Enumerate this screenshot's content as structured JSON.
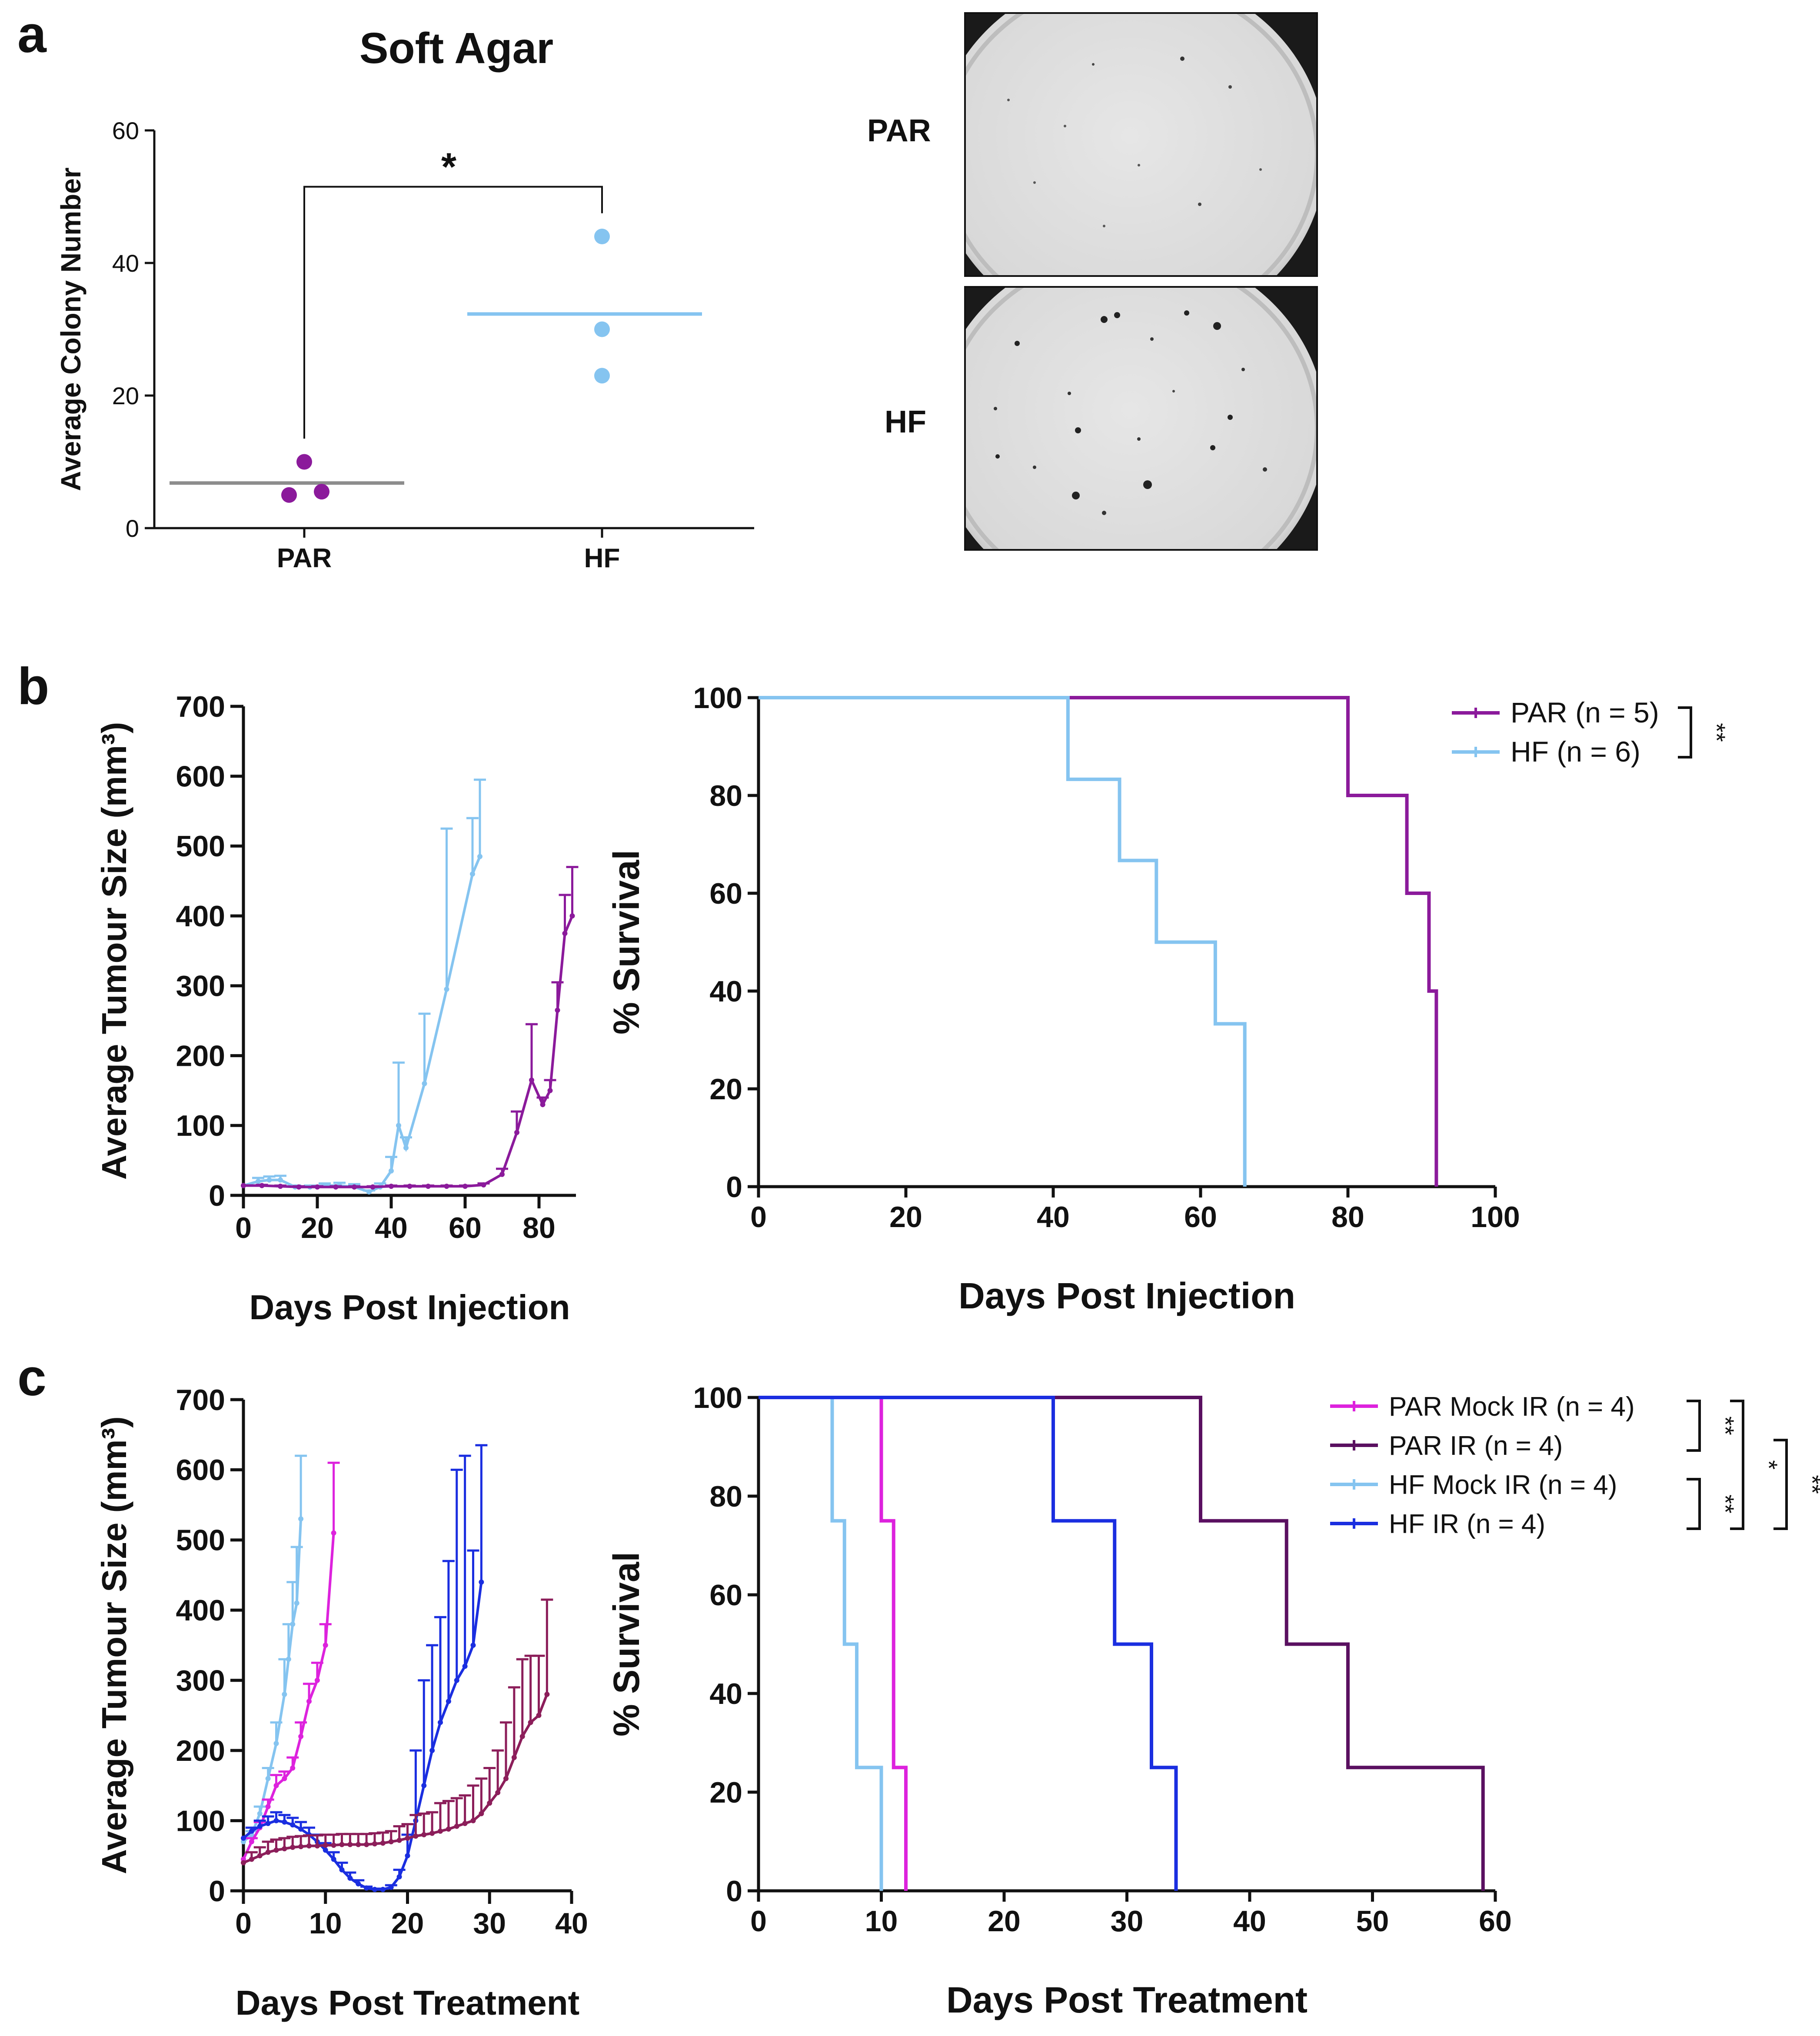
{
  "colors": {
    "par_mid": "#8B1A9B",
    "hf_light": "#85C4F0",
    "par_gray": "#8C8C8C",
    "par_mock_ir": "#DD22DD",
    "par_ir": "#5A1060",
    "hf_ir": "#1A2EE0",
    "c_par_ir_tumour": "#8C1E5A",
    "axis": "#111111"
  },
  "panels": {
    "a": {
      "letter": "a"
    },
    "b": {
      "letter": "b"
    },
    "c": {
      "letter": "c"
    }
  },
  "images": {
    "par_label": "PAR",
    "hf_label": "HF"
  },
  "chart_data": [
    {
      "id": "a-soft-agar",
      "type": "scatter",
      "title": "Soft Agar",
      "xlabel": "",
      "ylabel": "Average Colony Number",
      "categories": [
        "PAR",
        "HF"
      ],
      "ylim": [
        0,
        60
      ],
      "yticks": [
        0,
        20,
        40,
        60
      ],
      "series": [
        {
          "name": "PAR",
          "points": [
            10,
            5,
            5.5
          ],
          "mean": 6.8,
          "color": "#8B1A9B",
          "mean_color": "#8C8C8C"
        },
        {
          "name": "HF",
          "points": [
            44,
            30,
            23
          ],
          "mean": 32.3,
          "color": "#85C4F0",
          "mean_color": "#85C4F0"
        }
      ],
      "significance": "*"
    },
    {
      "id": "b-tumour",
      "type": "line",
      "xlabel": "Days Post Injection",
      "ylabel": "Average Tumour Size (mm³)",
      "xlim": [
        0,
        90
      ],
      "xticks": [
        0,
        20,
        40,
        60,
        80
      ],
      "ylim": [
        0,
        700
      ],
      "yticks": [
        0,
        100,
        200,
        300,
        400,
        500,
        600,
        700
      ],
      "series": [
        {
          "name": "HF",
          "color": "#85C4F0",
          "x": [
            0,
            4,
            7,
            10,
            14,
            18,
            22,
            26,
            30,
            34,
            37,
            40,
            42,
            44,
            49,
            55,
            62,
            64
          ],
          "y": [
            14,
            20,
            22,
            22,
            12,
            12,
            14,
            14,
            12,
            5,
            12,
            35,
            100,
            68,
            160,
            295,
            460,
            485
          ],
          "err": [
            0,
            5,
            5,
            6,
            2,
            2,
            3,
            4,
            4,
            2,
            5,
            20,
            90,
            15,
            100,
            230,
            80,
            110
          ]
        },
        {
          "name": "PAR",
          "color": "#8B1A9B",
          "x": [
            0,
            5,
            10,
            15,
            20,
            25,
            30,
            35,
            40,
            45,
            50,
            55,
            60,
            65,
            70,
            74,
            78,
            81,
            83,
            85,
            87,
            89
          ],
          "y": [
            14,
            14,
            13,
            12,
            12,
            12,
            12,
            12,
            13,
            13,
            13,
            13,
            13,
            15,
            30,
            90,
            165,
            130,
            150,
            265,
            375,
            400
          ],
          "err": [
            0,
            1,
            1,
            1,
            1,
            1,
            1,
            1,
            1,
            1,
            1,
            1,
            1,
            2,
            8,
            30,
            80,
            10,
            15,
            40,
            55,
            70
          ]
        }
      ]
    },
    {
      "id": "b-survival",
      "type": "line",
      "xlabel": "Days Post Injection",
      "ylabel": "% Survival",
      "xlim": [
        0,
        100
      ],
      "xticks": [
        0,
        20,
        40,
        60,
        80,
        100
      ],
      "ylim": [
        0,
        100
      ],
      "yticks": [
        0,
        20,
        40,
        60,
        80,
        100
      ],
      "legend": "top-right",
      "series": [
        {
          "name": "PAR (n = 5)",
          "color": "#8B1A9B",
          "x": [
            0,
            80,
            88,
            91,
            92
          ],
          "y": [
            100,
            80,
            60,
            40,
            0
          ]
        },
        {
          "name": "HF (n = 6)",
          "color": "#85C4F0",
          "x": [
            0,
            42,
            49,
            54,
            62,
            66
          ],
          "y": [
            100,
            83.3,
            66.7,
            50,
            33.3,
            0
          ]
        }
      ],
      "significance": [
        {
          "label": "**",
          "between": [
            0,
            1
          ]
        }
      ]
    },
    {
      "id": "c-tumour",
      "type": "line",
      "xlabel": "Days Post Treatment",
      "ylabel": "Average Tumour Size (mm³)",
      "xlim": [
        0,
        40
      ],
      "xticks": [
        0,
        10,
        20,
        30,
        40
      ],
      "ylim": [
        0,
        700
      ],
      "yticks": [
        0,
        100,
        200,
        300,
        400,
        500,
        600,
        700
      ],
      "series": [
        {
          "name": "HF Mock IR",
          "color": "#85C4F0",
          "x": [
            0,
            1,
            2,
            3,
            4,
            5,
            5.5,
            6,
            6.5,
            7
          ],
          "y": [
            70,
            80,
            110,
            160,
            210,
            280,
            330,
            380,
            410,
            530
          ],
          "err": [
            0,
            5,
            10,
            15,
            30,
            50,
            50,
            60,
            80,
            90
          ]
        },
        {
          "name": "PAR Mock IR",
          "color": "#DD22DD",
          "x": [
            0,
            1,
            2,
            3,
            4,
            5,
            6,
            7,
            8,
            9,
            10,
            11
          ],
          "y": [
            45,
            70,
            90,
            120,
            150,
            160,
            175,
            220,
            270,
            300,
            350,
            510
          ],
          "err": [
            0,
            5,
            8,
            10,
            15,
            10,
            15,
            20,
            25,
            25,
            30,
            100
          ]
        },
        {
          "name": "HF IR",
          "color": "#1A2EE0",
          "x": [
            0,
            1,
            2,
            3,
            4,
            5,
            6,
            7,
            8,
            9,
            10,
            11,
            12,
            13,
            14,
            15,
            16,
            17,
            18,
            19,
            20,
            21,
            22,
            23,
            24,
            25,
            26,
            27,
            28,
            29
          ],
          "y": [
            75,
            85,
            92,
            96,
            100,
            98,
            94,
            88,
            80,
            70,
            58,
            45,
            30,
            18,
            10,
            4,
            2,
            2,
            5,
            20,
            50,
            100,
            150,
            200,
            240,
            270,
            300,
            320,
            350,
            440
          ],
          "err": [
            0,
            5,
            8,
            10,
            12,
            10,
            10,
            10,
            10,
            10,
            10,
            10,
            10,
            8,
            5,
            2,
            1,
            1,
            3,
            10,
            30,
            100,
            150,
            150,
            150,
            200,
            300,
            300,
            135,
            195
          ]
        },
        {
          "name": "PAR IR",
          "color": "#8C1E5A",
          "x": [
            0,
            1,
            2,
            3,
            4,
            5,
            6,
            7,
            8,
            9,
            10,
            11,
            12,
            13,
            14,
            15,
            16,
            17,
            18,
            19,
            20,
            21,
            22,
            23,
            24,
            25,
            26,
            27,
            28,
            29,
            30,
            31,
            32,
            33,
            34,
            35,
            36,
            37
          ],
          "y": [
            40,
            45,
            50,
            55,
            58,
            60,
            62,
            63,
            64,
            64,
            65,
            65,
            66,
            66,
            66,
            66,
            67,
            68,
            70,
            72,
            75,
            78,
            80,
            82,
            85,
            88,
            92,
            96,
            100,
            110,
            125,
            140,
            160,
            190,
            220,
            240,
            250,
            280
          ],
          "err": [
            0,
            10,
            12,
            15,
            15,
            15,
            15,
            15,
            15,
            15,
            15,
            15,
            15,
            15,
            15,
            15,
            15,
            15,
            15,
            20,
            20,
            30,
            30,
            30,
            40,
            40,
            40,
            40,
            50,
            50,
            50,
            60,
            80,
            100,
            110,
            95,
            85,
            135
          ]
        }
      ]
    },
    {
      "id": "c-survival",
      "type": "line",
      "xlabel": "Days Post Treatment",
      "ylabel": "% Survival",
      "xlim": [
        0,
        60
      ],
      "xticks": [
        0,
        10,
        20,
        30,
        40,
        50,
        60
      ],
      "ylim": [
        0,
        100
      ],
      "yticks": [
        0,
        20,
        40,
        60,
        80,
        100
      ],
      "legend": "top-right",
      "series": [
        {
          "name": "PAR Mock IR (n = 4)",
          "color": "#DD22DD",
          "x": [
            0,
            10,
            11,
            12
          ],
          "y": [
            100,
            75,
            25,
            0
          ]
        },
        {
          "name": "PAR IR (n = 4)",
          "color": "#5A1060",
          "x": [
            0,
            36,
            43,
            48,
            59
          ],
          "y": [
            100,
            75,
            50,
            25,
            0
          ]
        },
        {
          "name": "HF Mock IR (n = 4)",
          "color": "#85C4F0",
          "x": [
            0,
            6,
            7,
            8,
            10
          ],
          "y": [
            100,
            75,
            50,
            25,
            0
          ]
        },
        {
          "name": "HF IR (n = 4)",
          "color": "#1A2EE0",
          "x": [
            0,
            24,
            29,
            32,
            34
          ],
          "y": [
            100,
            75,
            50,
            25,
            0
          ]
        }
      ],
      "significance": [
        {
          "label": "**",
          "between": [
            0,
            1
          ]
        },
        {
          "label": "**",
          "between": [
            2,
            3
          ]
        },
        {
          "label": "*",
          "between": [
            0,
            3
          ]
        },
        {
          "label": "**",
          "between": [
            1,
            3
          ]
        }
      ]
    }
  ]
}
